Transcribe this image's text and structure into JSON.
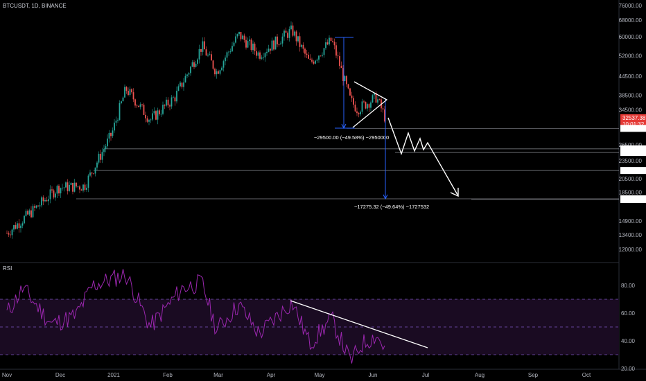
{
  "header": {
    "symbol": "BTCUSDT, 1D, BINANCE"
  },
  "rsi": {
    "label": "RSI",
    "levels": [
      80.0,
      60.0,
      40.0,
      20.0
    ],
    "upper_band": 70,
    "lower_band": 30,
    "mid": 50
  },
  "colors": {
    "bull": "#26a69a",
    "bear": "#ef5350",
    "rsi_line": "#9c27b0",
    "rsi_band": "#1a0b22",
    "price_tag": "#e53935",
    "measure": "#2962ff",
    "level_line": "#b2b5be"
  },
  "chart_data": {
    "type": "candlestick",
    "title": "BTCUSDT, 1D, BINANCE",
    "x_ticks": [
      "Nov",
      "Dec",
      "2021",
      "Feb",
      "Mar",
      "Apr",
      "May",
      "Jun",
      "Jul",
      "Aug",
      "Sep",
      "Oct"
    ],
    "y_scale": "log",
    "y_ticks": [
      76000.0,
      68000.0,
      60000.0,
      52000.0,
      44500.0,
      38500.0,
      34500.0,
      26500.0,
      23500.0,
      20500.0,
      18500.0,
      14900.0,
      13400.0,
      12000.0
    ],
    "last_price": "32537.38",
    "countdown": "10:01:32",
    "horizontal_levels": [
      "30000.00",
      "25700.00",
      "25000.00",
      "21815.00",
      "17610.86",
      "17524.68"
    ],
    "measurements": [
      {
        "label": "−29500.00 (−49.58%) −2950000"
      },
      {
        "label": "−17275.32 (−49.64%) −1727532"
      }
    ],
    "price_path": [
      {
        "date": "2020-11-01",
        "close": 13600
      },
      {
        "date": "2020-11-15",
        "close": 16000
      },
      {
        "date": "2020-11-30",
        "close": 19200
      },
      {
        "date": "2020-12-15",
        "close": 19400
      },
      {
        "date": "2020-12-31",
        "close": 28900
      },
      {
        "date": "2021-01-08",
        "close": 40500
      },
      {
        "date": "2021-01-22",
        "close": 32000
      },
      {
        "date": "2021-02-05",
        "close": 38000
      },
      {
        "date": "2021-02-20",
        "close": 56000
      },
      {
        "date": "2021-02-28",
        "close": 46000
      },
      {
        "date": "2021-03-13",
        "close": 61000
      },
      {
        "date": "2021-03-25",
        "close": 52500
      },
      {
        "date": "2021-04-14",
        "close": 63000
      },
      {
        "date": "2021-04-25",
        "close": 49000
      },
      {
        "date": "2021-05-08",
        "close": 58500
      },
      {
        "date": "2021-05-12",
        "close": 50000
      },
      {
        "date": "2021-05-19",
        "close": 37000
      },
      {
        "date": "2021-05-23",
        "close": 34700
      },
      {
        "date": "2021-06-03",
        "close": 38000
      },
      {
        "date": "2021-06-08",
        "close": 32500
      }
    ],
    "rsi_series": {
      "name": "RSI",
      "points": [
        {
          "date": "2020-11-01",
          "value": 60
        },
        {
          "date": "2020-11-10",
          "value": 78
        },
        {
          "date": "2020-11-26",
          "value": 52
        },
        {
          "date": "2020-12-10",
          "value": 58
        },
        {
          "date": "2020-12-20",
          "value": 80
        },
        {
          "date": "2021-01-08",
          "value": 88
        },
        {
          "date": "2021-01-22",
          "value": 50
        },
        {
          "date": "2021-02-09",
          "value": 78
        },
        {
          "date": "2021-02-20",
          "value": 82
        },
        {
          "date": "2021-02-28",
          "value": 48
        },
        {
          "date": "2021-03-13",
          "value": 66
        },
        {
          "date": "2021-03-25",
          "value": 45
        },
        {
          "date": "2021-04-14",
          "value": 68
        },
        {
          "date": "2021-04-25",
          "value": 38
        },
        {
          "date": "2021-05-08",
          "value": 56
        },
        {
          "date": "2021-05-19",
          "value": 25
        },
        {
          "date": "2021-05-26",
          "value": 38
        },
        {
          "date": "2021-06-03",
          "value": 44
        },
        {
          "date": "2021-06-08",
          "value": 34
        }
      ]
    }
  }
}
